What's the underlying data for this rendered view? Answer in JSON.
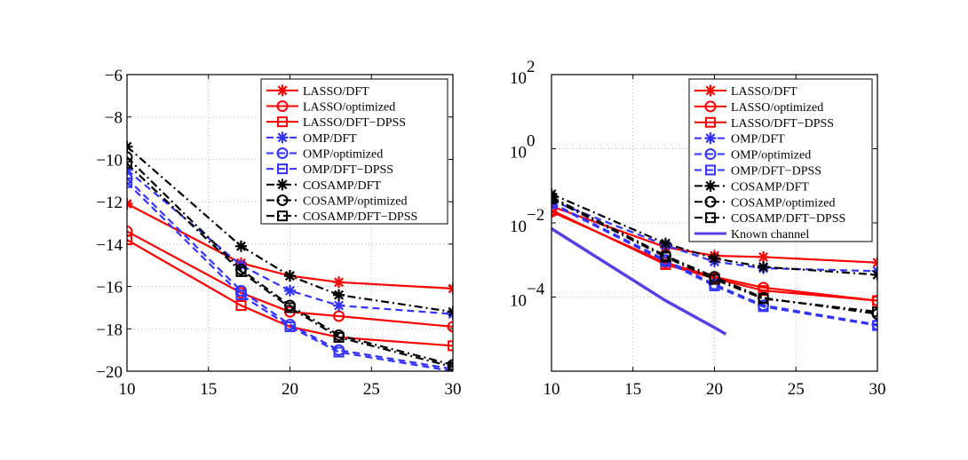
{
  "chart_data": [
    {
      "type": "line",
      "title": "",
      "xlabel": "",
      "ylabel": "",
      "xlim": [
        10,
        30
      ],
      "ylim": [
        -20,
        -6
      ],
      "xticks": [
        10,
        15,
        20,
        25,
        30
      ],
      "yticks": [
        -20,
        -18,
        -16,
        -14,
        -12,
        -10,
        -8,
        -6
      ],
      "xtick_labels": [
        "10",
        "15",
        "20",
        "25",
        "30"
      ],
      "ytick_labels": [
        "−20",
        "−18",
        "−16",
        "−14",
        "−12",
        "−10",
        "−8",
        "−6"
      ],
      "grid": true,
      "legend_position": "top-right",
      "x": [
        10,
        17,
        20,
        23,
        30
      ],
      "series": [
        {
          "name": "LASSO/DFT",
          "color": "#ff0000",
          "dash": "solid",
          "marker": "asterisk",
          "values": [
            -12.1,
            -14.9,
            -15.5,
            -15.8,
            -16.1
          ]
        },
        {
          "name": "LASSO/optimized",
          "color": "#ff0000",
          "dash": "solid",
          "marker": "circle",
          "values": [
            -13.4,
            -16.3,
            -17.2,
            -17.4,
            -17.9
          ]
        },
        {
          "name": "LASSO/DFT−DPSS",
          "color": "#ff0000",
          "dash": "solid",
          "marker": "square",
          "values": [
            -13.8,
            -16.9,
            -17.9,
            -18.4,
            -18.8
          ]
        },
        {
          "name": "OMP/DFT",
          "color": "#3333ff",
          "dash": "dashed",
          "marker": "asterisk",
          "values": [
            -10.5,
            -15.0,
            -16.2,
            -16.9,
            -17.3
          ]
        },
        {
          "name": "OMP/optimized",
          "color": "#3333ff",
          "dash": "dashed",
          "marker": "circle",
          "values": [
            -10.9,
            -16.2,
            -17.8,
            -19.0,
            -19.9
          ]
        },
        {
          "name": "OMP/DFT−DPSS",
          "color": "#3333ff",
          "dash": "dashed",
          "marker": "square",
          "values": [
            -11.1,
            -16.4,
            -17.9,
            -19.1,
            -20.0
          ]
        },
        {
          "name": "COSAMP/DFT",
          "color": "#000000",
          "dash": "dashdot",
          "marker": "asterisk",
          "values": [
            -9.4,
            -14.1,
            -15.5,
            -16.4,
            -17.2
          ]
        },
        {
          "name": "COSAMP/optimized",
          "color": "#000000",
          "dash": "dashdot",
          "marker": "circle",
          "values": [
            -9.9,
            -15.2,
            -16.9,
            -18.3,
            -19.7
          ]
        },
        {
          "name": "COSAMP/DFT−DPSS",
          "color": "#000000",
          "dash": "dashdot",
          "marker": "square",
          "values": [
            -10.2,
            -15.3,
            -17.0,
            -18.4,
            -19.8
          ]
        }
      ]
    },
    {
      "type": "line",
      "title": "",
      "xlabel": "",
      "ylabel": "",
      "yscale": "log",
      "xlim": [
        10,
        30
      ],
      "ylim": [
        1e-06,
        100
      ],
      "xticks": [
        10,
        15,
        20,
        25,
        30
      ],
      "yticks": [
        0.0001,
        0.01,
        1,
        100
      ],
      "xtick_labels": [
        "10",
        "15",
        "20",
        "25",
        "30"
      ],
      "ytick_labels": [
        {
          "base": "10",
          "exp": "−4"
        },
        {
          "base": "10",
          "exp": "−2"
        },
        {
          "base": "10",
          "exp": "0"
        },
        {
          "base": "10",
          "exp": "2"
        }
      ],
      "grid": true,
      "legend_position": "top-right",
      "x": [
        10,
        17,
        20,
        23,
        30
      ],
      "series": [
        {
          "name": "LASSO/DFT",
          "color": "#ff0000",
          "dash": "solid",
          "marker": "asterisk",
          "values": [
            0.028,
            0.0022,
            0.0013,
            0.0012,
            0.00085
          ]
        },
        {
          "name": "LASSO/optimized",
          "color": "#ff0000",
          "dash": "solid",
          "marker": "circle",
          "values": [
            0.02,
            0.00085,
            0.00035,
            0.00018,
            8e-05
          ]
        },
        {
          "name": "LASSO/DFT−DPSS",
          "color": "#ff0000",
          "dash": "solid",
          "marker": "square",
          "values": [
            0.022,
            0.00075,
            0.00032,
            0.00015,
            8e-05
          ]
        },
        {
          "name": "OMP/DFT",
          "color": "#3333ff",
          "dash": "dashed",
          "marker": "asterisk",
          "values": [
            0.04,
            0.0025,
            0.0009,
            0.0006,
            0.0005
          ]
        },
        {
          "name": "OMP/optimized",
          "color": "#3333ff",
          "dash": "dashed",
          "marker": "circle",
          "values": [
            0.035,
            0.001,
            0.00022,
            6e-05,
            1.8e-05
          ]
        },
        {
          "name": "OMP/DFT−DPSS",
          "color": "#3333ff",
          "dash": "dashed",
          "marker": "square",
          "values": [
            0.033,
            0.0009,
            0.0002,
            5.5e-05,
            1.7e-05
          ]
        },
        {
          "name": "COSAMP/DFT",
          "color": "#000000",
          "dash": "dashdot",
          "marker": "asterisk",
          "values": [
            0.06,
            0.0028,
            0.0011,
            0.00065,
            0.0004
          ]
        },
        {
          "name": "COSAMP/optimized",
          "color": "#000000",
          "dash": "dashdot",
          "marker": "circle",
          "values": [
            0.05,
            0.0013,
            0.00035,
            9.5e-05,
            3.5e-05
          ]
        },
        {
          "name": "COSAMP/DFT−DPSS",
          "color": "#000000",
          "dash": "dashdot",
          "marker": "square",
          "values": [
            0.045,
            0.0012,
            0.0003,
            9e-05,
            4e-05
          ]
        },
        {
          "name": "Known channel",
          "color": "#5540e6",
          "dash": "solid",
          "marker": "none",
          "x": [
            10,
            17,
            20,
            20.7
          ],
          "values": [
            0.007,
            8e-05,
            1.5e-05,
            1e-05
          ]
        }
      ]
    }
  ]
}
